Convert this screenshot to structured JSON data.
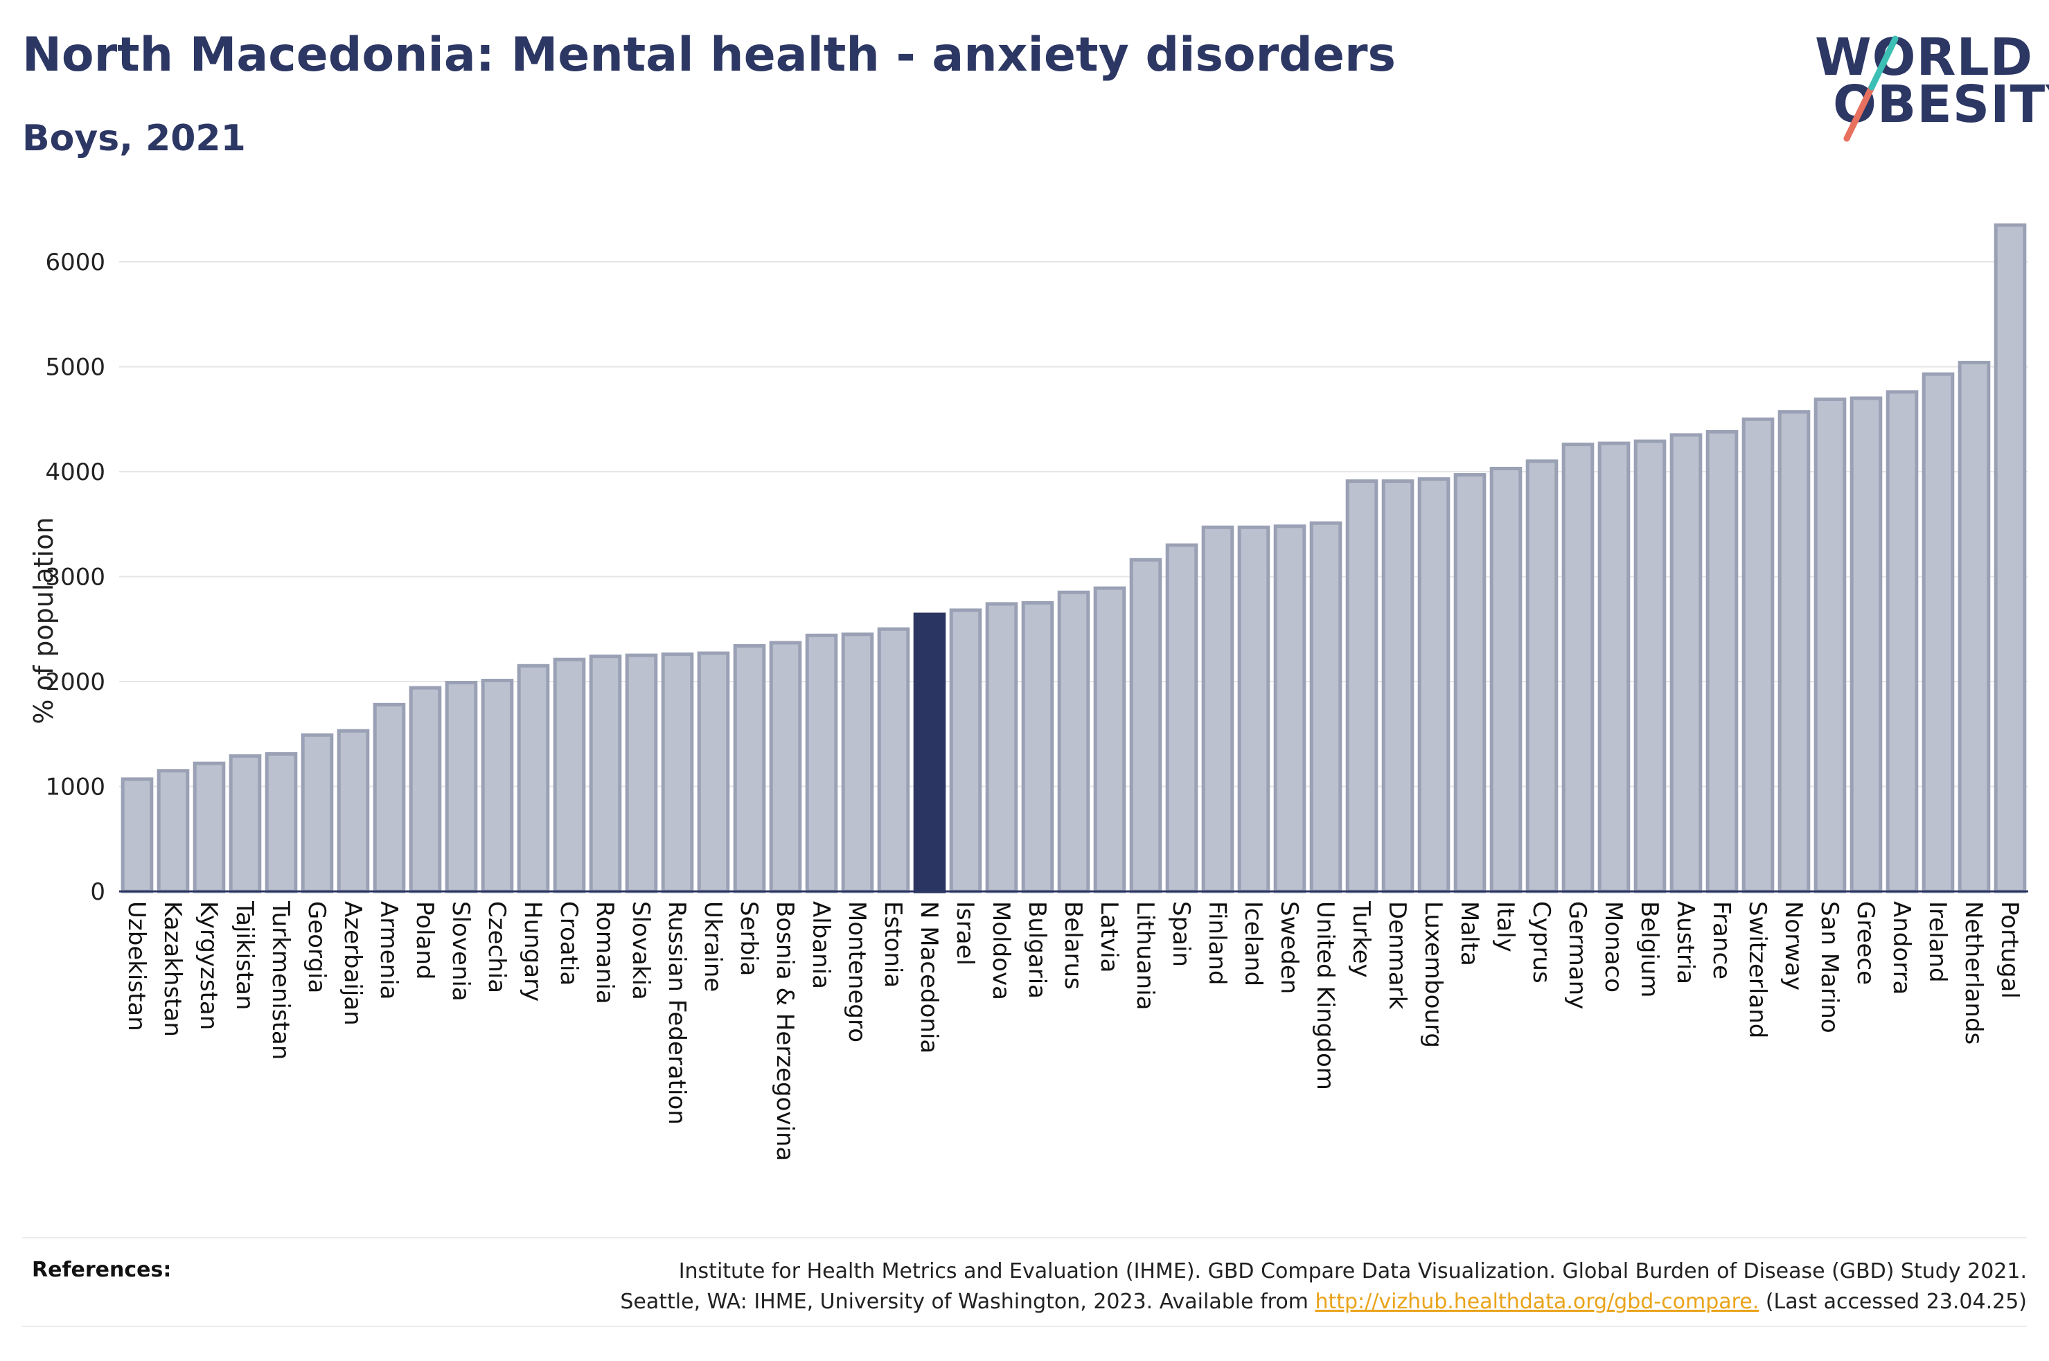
{
  "header": {
    "title": "North Macedonia: Mental health - anxiety disorders",
    "subtitle": "Boys, 2021"
  },
  "logo": {
    "line1": "WORLD",
    "line2": "OBESITY"
  },
  "colors": {
    "bar": "#bcc1cf",
    "bar_border": "#9aa1b5",
    "highlight": "#2b3561",
    "grid": "#e6e6e6",
    "text": "#2c3764",
    "link": "#e9a31a"
  },
  "chart_data": {
    "type": "bar",
    "title": "North Macedonia: Mental health - anxiety disorders",
    "subtitle": "Boys, 2021",
    "ylabel": "% of population",
    "xlabel": "",
    "ylim": [
      0,
      6500
    ],
    "yticks": [
      0,
      1000,
      2000,
      3000,
      4000,
      5000,
      6000
    ],
    "grid": true,
    "highlight": "N Macedonia",
    "categories": [
      "Uzbekistan",
      "Kazakhstan",
      "Kyrgyzstan",
      "Tajikistan",
      "Turkmenistan",
      "Georgia",
      "Azerbaijan",
      "Armenia",
      "Poland",
      "Slovenia",
      "Czechia",
      "Hungary",
      "Croatia",
      "Romania",
      "Slovakia",
      "Russian Federation",
      "Ukraine",
      "Serbia",
      "Bosnia & Herzegovina",
      "Albania",
      "Montenegro",
      "Estonia",
      "N Macedonia",
      "Israel",
      "Moldova",
      "Bulgaria",
      "Belarus",
      "Latvia",
      "Lithuania",
      "Spain",
      "Finland",
      "Iceland",
      "Sweden",
      "United Kingdom",
      "Turkey",
      "Denmark",
      "Luxembourg",
      "Malta",
      "Italy",
      "Cyprus",
      "Germany",
      "Monaco",
      "Belgium",
      "Austria",
      "France",
      "Switzerland",
      "Norway",
      "San Marino",
      "Greece",
      "Andorra",
      "Ireland",
      "Netherlands",
      "Portugal"
    ],
    "values": [
      1070,
      1150,
      1220,
      1290,
      1310,
      1490,
      1530,
      1780,
      1940,
      1990,
      2010,
      2150,
      2210,
      2240,
      2250,
      2260,
      2270,
      2340,
      2370,
      2440,
      2450,
      2500,
      2640,
      2680,
      2740,
      2750,
      2850,
      2890,
      3160,
      3300,
      3470,
      3470,
      3480,
      3510,
      3910,
      3910,
      3930,
      3970,
      4030,
      4100,
      4260,
      4270,
      4290,
      4350,
      4380,
      4500,
      4570,
      4690,
      4700,
      4760,
      4930,
      5040,
      6350
    ]
  },
  "references": {
    "label": "References:",
    "line1": "Institute for Health Metrics and Evaluation (IHME). GBD Compare Data Visualization. Global Burden of Disease (GBD) Study 2021.",
    "line2_prefix": "Seattle, WA: IHME, University of Washington, 2023. Available from ",
    "link": "http://vizhub.healthdata.org/gbd-compare.",
    "line2_suffix": " (Last accessed 23.04.25)"
  }
}
